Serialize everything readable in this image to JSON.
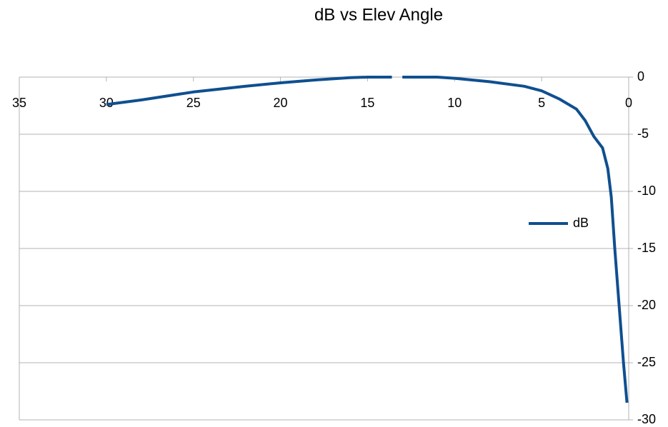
{
  "chart_data": {
    "type": "line",
    "title": "dB vs Elev Angle",
    "x": [
      30,
      28,
      25,
      22,
      20,
      18,
      16,
      15,
      14,
      13.6,
      null,
      13.0,
      11,
      10,
      8,
      6,
      5,
      4,
      3,
      2.5,
      2,
      1.5,
      1.2,
      1,
      0.8,
      0.5,
      0.3,
      0.1
    ],
    "series": [
      {
        "name": "dB",
        "color": "#0f4f8f",
        "values": [
          -2.4,
          -2.0,
          -1.3,
          -0.8,
          -0.5,
          -0.25,
          -0.05,
          0,
          0,
          0,
          null,
          0,
          0,
          -0.1,
          -0.4,
          -0.8,
          -1.2,
          -1.9,
          -2.8,
          -3.8,
          -5.2,
          -6.2,
          -8,
          -10.5,
          -15,
          -21,
          -25,
          -28.5
        ]
      }
    ],
    "xlim": [
      35,
      0
    ],
    "xticks": [
      35,
      30,
      25,
      20,
      15,
      10,
      5,
      0
    ],
    "ylim": [
      -30,
      0
    ],
    "yticks": [
      0,
      -5,
      -10,
      -15,
      -20,
      -25,
      -30
    ],
    "grid": true,
    "legend": "right"
  }
}
